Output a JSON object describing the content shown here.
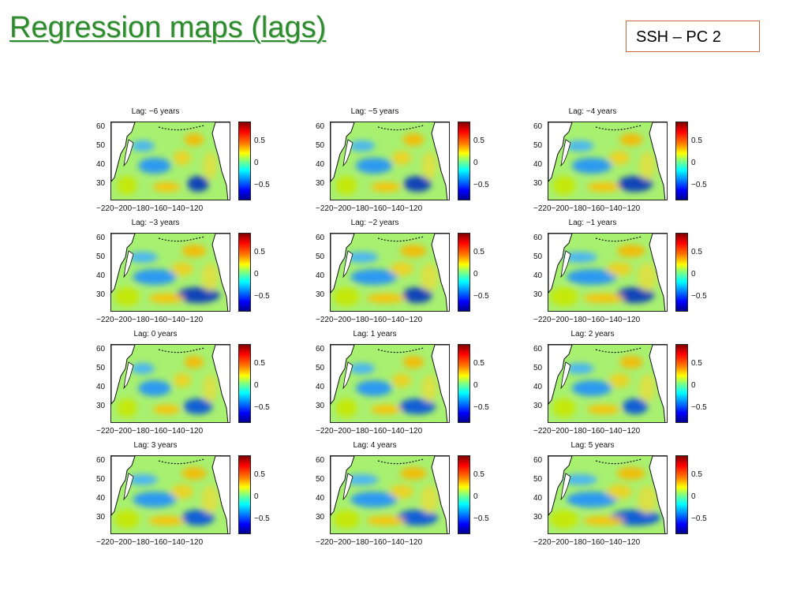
{
  "slide": {
    "title": "Regression maps (lags)",
    "tag": "SSH – PC 2"
  },
  "axes": {
    "y_ticks": [
      "60",
      "50",
      "40",
      "30"
    ],
    "x_ticks": "−220−200−180−160−140−120",
    "colorbar_ticks": [
      "0.5",
      "0",
      "−0.5"
    ]
  },
  "panels": [
    {
      "title": "Lag: −6 years"
    },
    {
      "title": "Lag: −5 years"
    },
    {
      "title": "Lag: −4 years"
    },
    {
      "title": "Lag: −3 years"
    },
    {
      "title": "Lag: −2 years"
    },
    {
      "title": "Lag: −1 years"
    },
    {
      "title": "Lag: 0 years"
    },
    {
      "title": "Lag: 1 years"
    },
    {
      "title": "Lag: 2 years"
    },
    {
      "title": "Lag: 3 years"
    },
    {
      "title": "Lag: 4 years"
    },
    {
      "title": "Lag: 5 years"
    }
  ],
  "colors": {
    "title_green": "#2e8b2e",
    "box_border": "#c86a3c"
  }
}
